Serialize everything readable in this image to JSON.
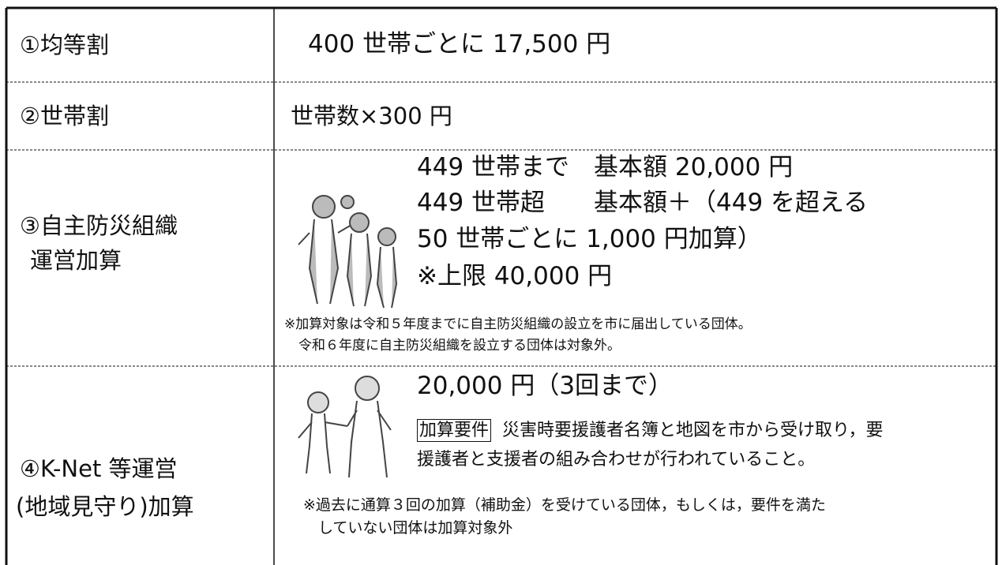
{
  "table": {
    "rows": [
      {
        "label": [
          "①均等割"
        ],
        "content": [
          "400 世帯ごとに 17,500 円"
        ]
      },
      {
        "label": [
          "②世帯割"
        ],
        "content": [
          "世帯数×300 円"
        ]
      },
      {
        "label": [
          "③自主防災組織",
          "運営加算"
        ],
        "content": [
          "449 世帯まで　基本額 20,000 円",
          "449 世帯超　　基本額＋（449 を超える",
          "50 世帯ごとに 1,000 円加算）",
          "※上限 40,000 円"
        ],
        "notes": [
          "※加算対象は令和５年度までに自主防災組織の設立を市に届出している団体。",
          "令和６年度に自主防災組織を設立する団体は対象外。"
        ]
      },
      {
        "label": [
          "④K-Net 等運営",
          "(地域見守り)加算"
        ],
        "content": [
          "20,000 円（3回まで）"
        ],
        "requirement_tag": "加算要件",
        "requirement": [
          "災害時要援護者名簿と地図を市から受け取り，要",
          "援護者と支援者の組み合わせが行われていること。"
        ],
        "notes": [
          "※過去に通算３回の加算（補助金）を受けている団体，もしくは，要件を満た",
          "していない団体は加算対象外"
        ]
      }
    ]
  }
}
